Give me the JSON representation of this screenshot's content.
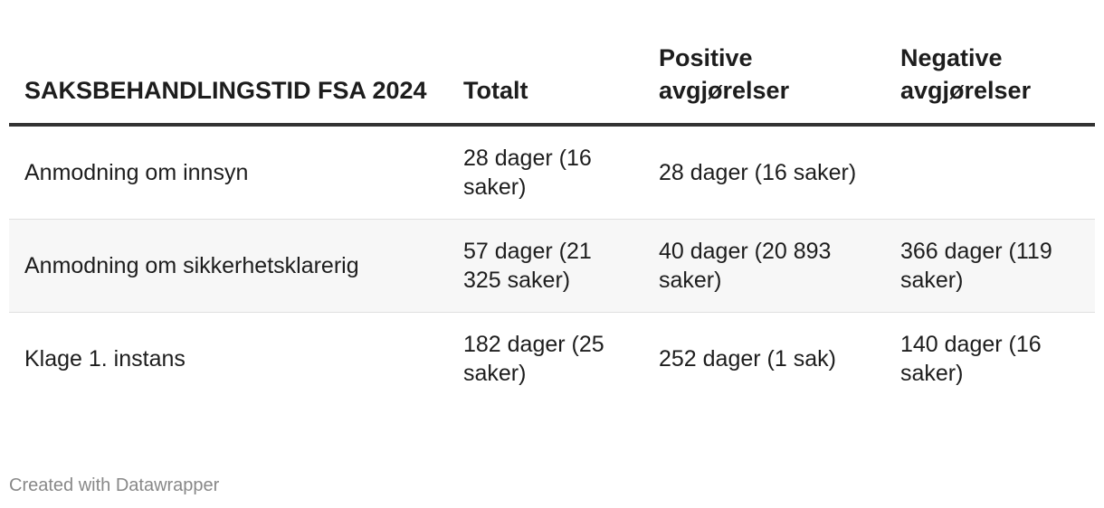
{
  "chart_data": {
    "type": "table",
    "columns": [
      "SAKSBEHANDLINGSTID FSA 2024",
      "Totalt",
      "Positive avgjørelser",
      "Negative avgjørelser"
    ],
    "rows": [
      [
        "Anmodning om innsyn",
        "28 dager (16 saker)",
        "28 dager (16 saker)",
        ""
      ],
      [
        "Anmodning om sikkerhetsklarerig",
        "57 dager (21 325 saker)",
        "40 dager (20 893 saker)",
        "366 dager (119 saker)"
      ],
      [
        "Klage 1. instans",
        "182 dager (25 saker)",
        "252 dager (1 sak)",
        "140 dager (16 saker)"
      ]
    ],
    "colors": {
      "header_rule": "#333333",
      "row_divider": "#e0e0e0",
      "shaded_row": "#f7f7f7",
      "footer_text": "#888888"
    }
  },
  "footer": {
    "credit": "Created with Datawrapper"
  }
}
